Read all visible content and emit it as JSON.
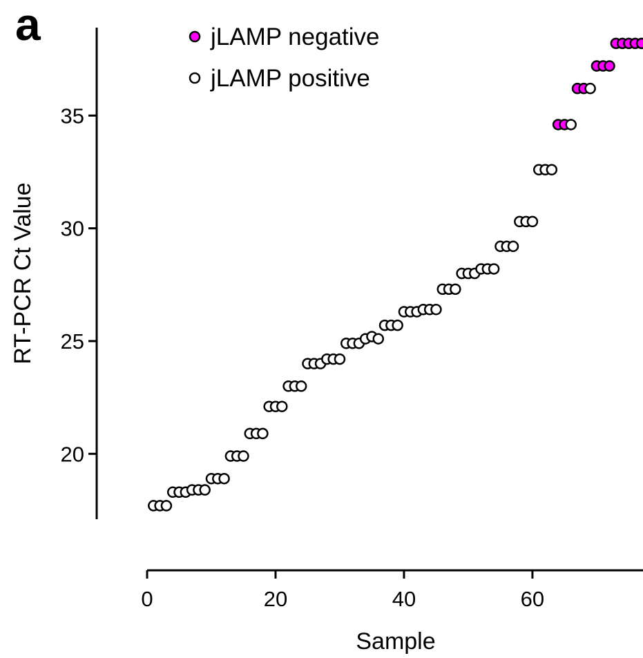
{
  "panel_label": "a",
  "colors": {
    "negative": "#ff00ff",
    "positive": "#ffffff",
    "stroke": "#000000"
  },
  "chart_data": {
    "type": "scatter",
    "xlabel": "Sample",
    "ylabel": "RT-PCR Ct Value",
    "xlim": [
      0,
      77
    ],
    "ylim": [
      17.1,
      38.9
    ],
    "x_ticks": [
      0,
      20,
      40,
      60
    ],
    "y_ticks": [
      20,
      25,
      30,
      35
    ],
    "legend": {
      "position": "top-left",
      "entries": [
        "jLAMP negative",
        "jLAMP positive"
      ]
    },
    "series": [
      {
        "name": "jLAMP negative",
        "points": [
          [
            64,
            34.6
          ],
          [
            65,
            34.6
          ],
          [
            67,
            36.2
          ],
          [
            68,
            36.2
          ],
          [
            70,
            37.2
          ],
          [
            71,
            37.2
          ],
          [
            72,
            37.2
          ],
          [
            73,
            38.2
          ],
          [
            74,
            38.2
          ],
          [
            75,
            38.2
          ],
          [
            76,
            38.2
          ],
          [
            77,
            38.2
          ]
        ]
      },
      {
        "name": "jLAMP positive",
        "points": [
          [
            1,
            17.7
          ],
          [
            2,
            17.7
          ],
          [
            3,
            17.7
          ],
          [
            4,
            18.3
          ],
          [
            5,
            18.3
          ],
          [
            6,
            18.3
          ],
          [
            7,
            18.4
          ],
          [
            8,
            18.4
          ],
          [
            9,
            18.4
          ],
          [
            10,
            18.9
          ],
          [
            11,
            18.9
          ],
          [
            12,
            18.9
          ],
          [
            13,
            19.9
          ],
          [
            14,
            19.9
          ],
          [
            15,
            19.9
          ],
          [
            16,
            20.9
          ],
          [
            17,
            20.9
          ],
          [
            18,
            20.9
          ],
          [
            19,
            22.1
          ],
          [
            20,
            22.1
          ],
          [
            21,
            22.1
          ],
          [
            22,
            23.0
          ],
          [
            23,
            23.0
          ],
          [
            24,
            23.0
          ],
          [
            25,
            24.0
          ],
          [
            26,
            24.0
          ],
          [
            27,
            24.0
          ],
          [
            28,
            24.2
          ],
          [
            29,
            24.2
          ],
          [
            30,
            24.2
          ],
          [
            31,
            24.9
          ],
          [
            32,
            24.9
          ],
          [
            33,
            24.9
          ],
          [
            34,
            25.1
          ],
          [
            35,
            25.2
          ],
          [
            36,
            25.1
          ],
          [
            37,
            25.7
          ],
          [
            38,
            25.7
          ],
          [
            39,
            25.7
          ],
          [
            40,
            26.3
          ],
          [
            41,
            26.3
          ],
          [
            42,
            26.3
          ],
          [
            43,
            26.4
          ],
          [
            44,
            26.4
          ],
          [
            45,
            26.4
          ],
          [
            46,
            27.3
          ],
          [
            47,
            27.3
          ],
          [
            48,
            27.3
          ],
          [
            49,
            28.0
          ],
          [
            50,
            28.0
          ],
          [
            51,
            28.0
          ],
          [
            52,
            28.2
          ],
          [
            53,
            28.2
          ],
          [
            54,
            28.2
          ],
          [
            55,
            29.2
          ],
          [
            56,
            29.2
          ],
          [
            57,
            29.2
          ],
          [
            58,
            30.3
          ],
          [
            59,
            30.3
          ],
          [
            60,
            30.3
          ],
          [
            61,
            32.6
          ],
          [
            62,
            32.6
          ],
          [
            63,
            32.6
          ],
          [
            66,
            34.6
          ],
          [
            69,
            36.2
          ]
        ]
      }
    ]
  }
}
